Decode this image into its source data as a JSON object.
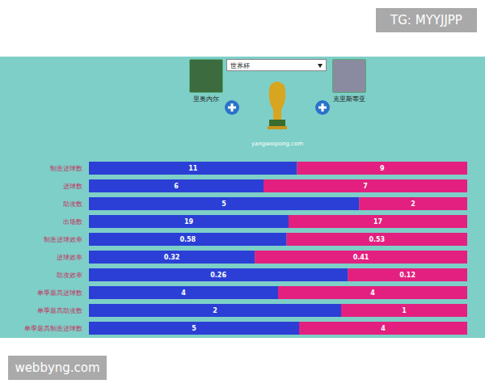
{
  "chart_data": {
    "type": "bar",
    "orientation": "horizontal",
    "stacked": true,
    "data_labels": true,
    "tick_labels": "y",
    "categories": [
      "制造进球数",
      "进球数",
      "助攻数",
      "出场数",
      "制造进球效率",
      "进球效率",
      "助攻效率",
      "单季最高进球数",
      "单季最高助攻数",
      "单季最高制造进球数"
    ],
    "series": [
      {
        "name": "里奥内尔",
        "color": "#2b3fd6",
        "values": [
          11,
          6,
          5,
          19,
          0.58,
          0.32,
          0.26,
          4,
          2,
          5
        ]
      },
      {
        "name": "克里斯蒂亚",
        "color": "#e3207f",
        "values": [
          9,
          7,
          2,
          17,
          0.53,
          0.41,
          0.12,
          4,
          1,
          4
        ]
      }
    ]
  },
  "page": {
    "selector": "世界杯",
    "site": "yangwoqiong.com",
    "watermarks": [
      "TG: MYYJJPP",
      "webbyng.com"
    ]
  }
}
